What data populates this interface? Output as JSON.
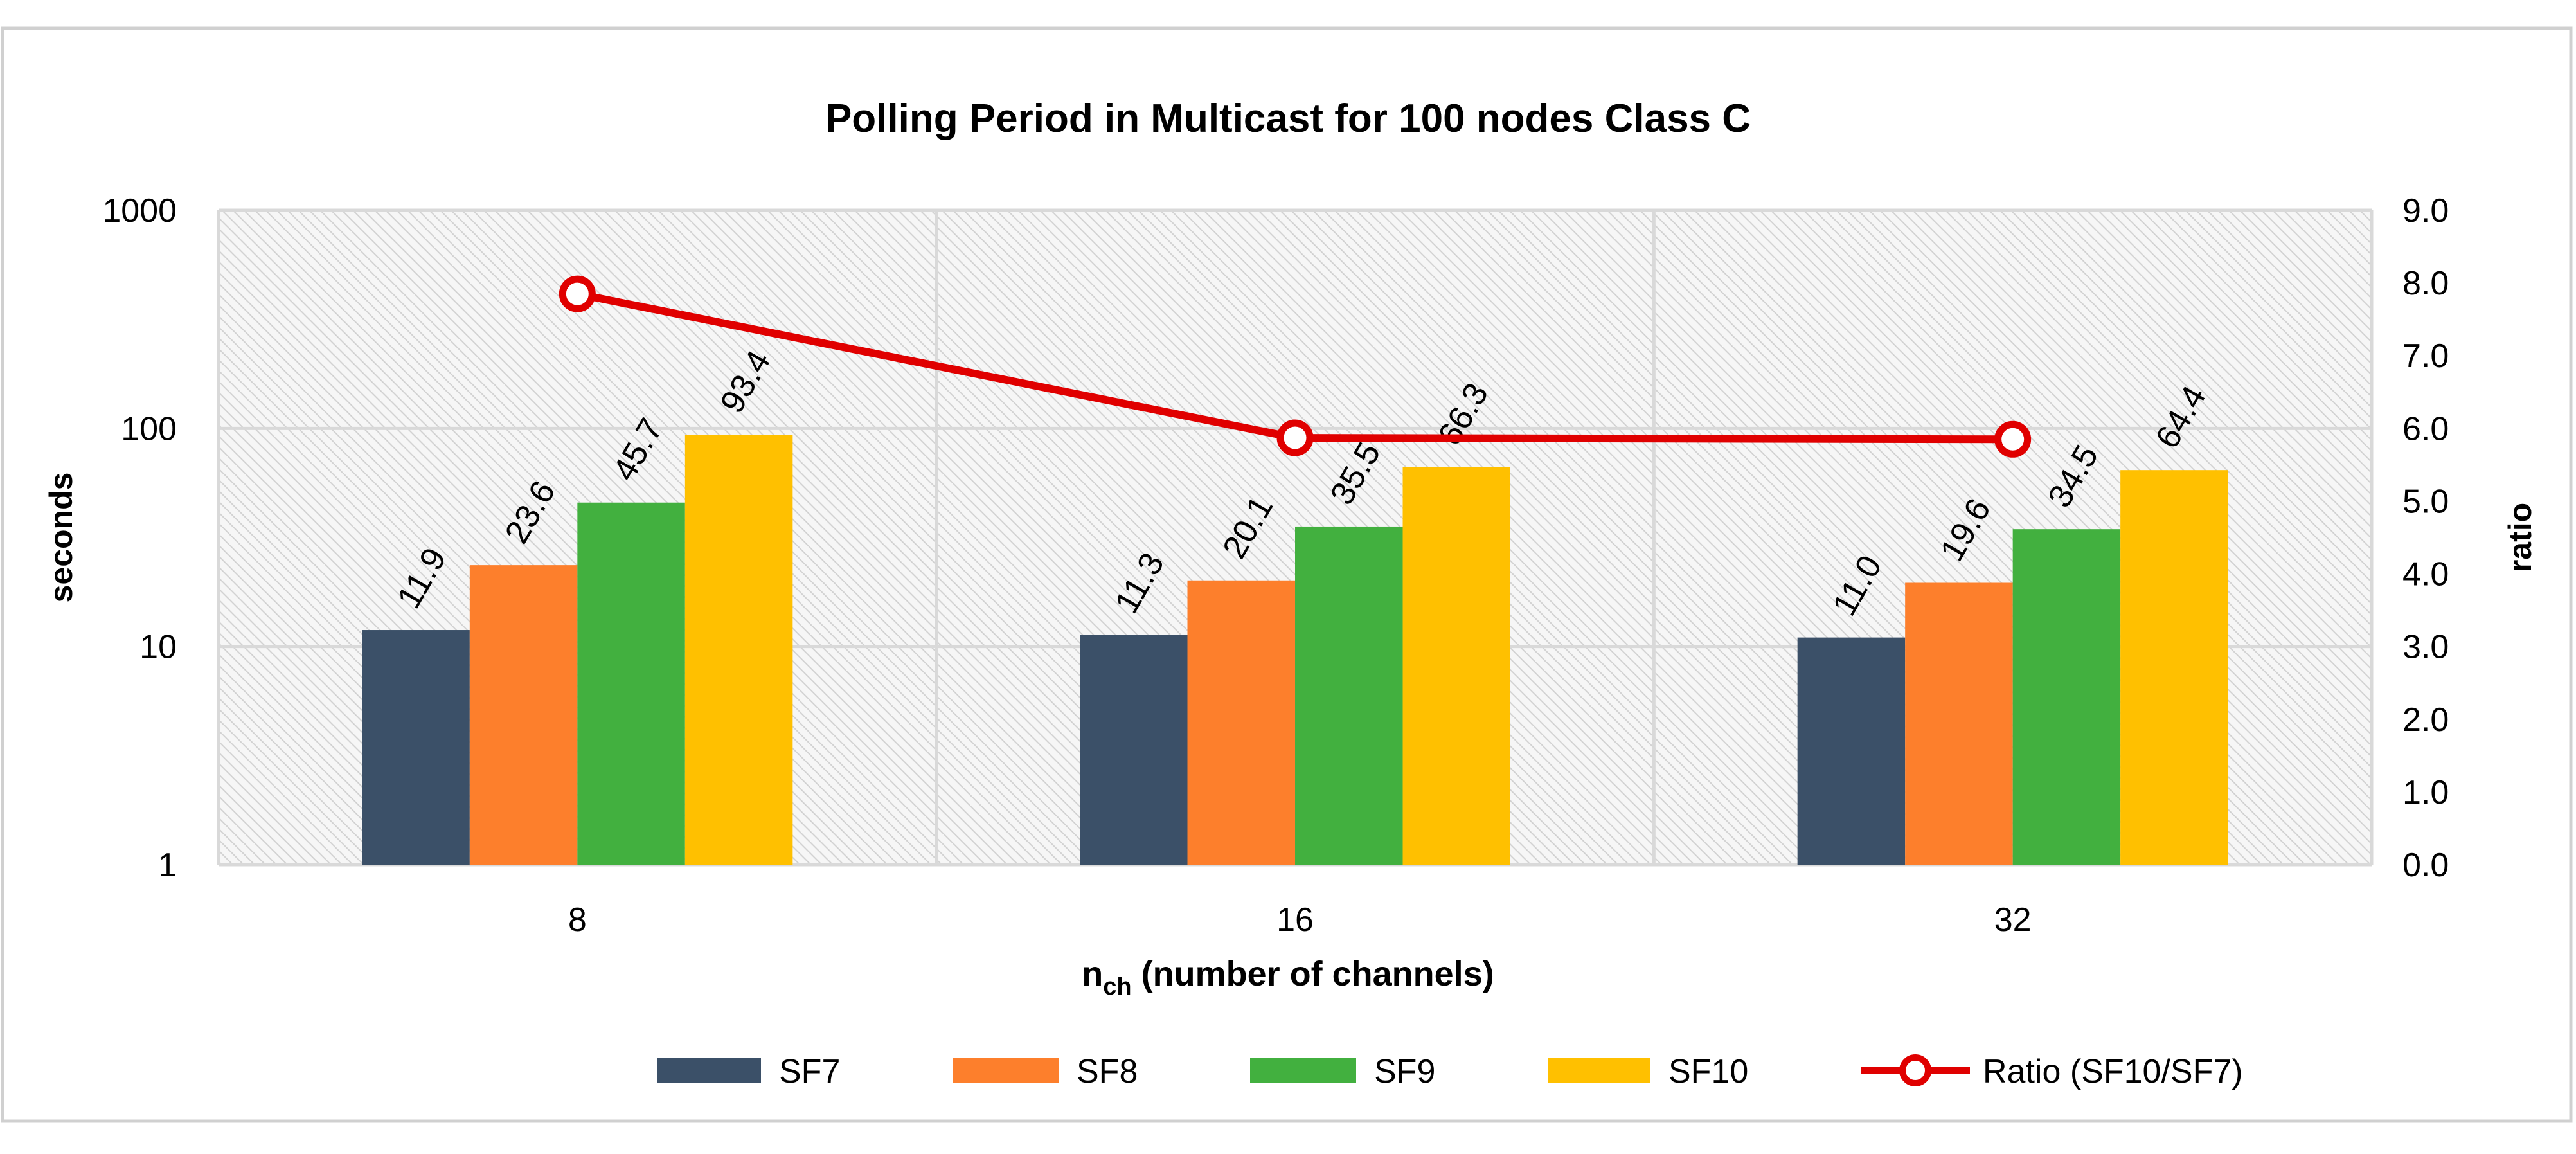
{
  "chart_data": {
    "type": "bar",
    "title": "Polling Period in Multicast for 100 nodes Class C",
    "xlabel_main": "n",
    "xlabel_sub": "ch",
    "xlabel_rest": " (number of channels)",
    "ylabel": "seconds",
    "y2label": "ratio",
    "yscale": "log",
    "ylim": [
      1,
      1000
    ],
    "yticks": [
      "1",
      "10",
      "100",
      "1000"
    ],
    "y2lim": [
      0,
      9
    ],
    "y2ticks": [
      "0.0",
      "1.0",
      "2.0",
      "3.0",
      "4.0",
      "5.0",
      "6.0",
      "7.0",
      "8.0",
      "9.0"
    ],
    "categories": [
      "8",
      "16",
      "32"
    ],
    "series": [
      {
        "name": "SF7",
        "color": "#3b5068",
        "values": [
          11.9,
          11.3,
          11.0
        ],
        "labels": [
          "11.9",
          "11.3",
          "11.0"
        ]
      },
      {
        "name": "SF8",
        "color": "#fd7f2c",
        "values": [
          23.6,
          20.1,
          19.6
        ],
        "labels": [
          "23.6",
          "20.1",
          "19.6"
        ]
      },
      {
        "name": "SF9",
        "color": "#42b03f",
        "values": [
          45.7,
          35.5,
          34.5
        ],
        "labels": [
          "45.7",
          "35.5",
          "34.5"
        ]
      },
      {
        "name": "SF10",
        "color": "#ffc000",
        "values": [
          93.4,
          66.3,
          64.4
        ],
        "labels": [
          "93.4",
          "66.3",
          "64.4"
        ]
      }
    ],
    "line_series": {
      "name": "Ratio (SF10/SF7)",
      "color": "#e00000",
      "axis": "right",
      "values": [
        7.85,
        5.87,
        5.85
      ]
    },
    "legend": {
      "position": "bottom"
    },
    "grid": true
  }
}
